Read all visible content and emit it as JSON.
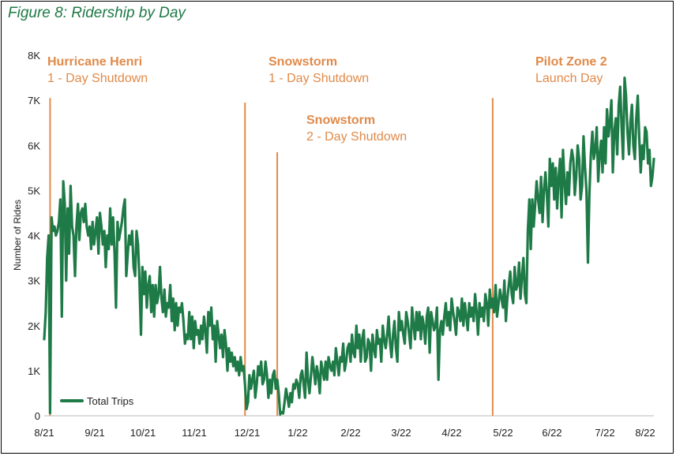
{
  "figure_title": "Figure 8: Ridership by Day",
  "colors": {
    "line": "#1e7a46",
    "annotation": "#e08a4a",
    "title": "#1e7a46"
  },
  "chart_data": {
    "type": "line",
    "title": "Figure 8: Ridership by Day",
    "xlabel": "",
    "ylabel": "Number of Rides",
    "ylim": [
      0,
      8000
    ],
    "yticks": [
      0,
      1000,
      2000,
      3000,
      4000,
      5000,
      6000,
      7000,
      8000
    ],
    "ytick_labels": [
      "0",
      "1K",
      "2K",
      "3K",
      "4K",
      "5K",
      "6K",
      "7K",
      "8K"
    ],
    "x_tick_labels": [
      "8/21",
      "9/21",
      "10/21",
      "11/21",
      "12/21",
      "1/22",
      "2/22",
      "3/22",
      "4/22",
      "5/22",
      "6/22",
      "7/22",
      "8/22"
    ],
    "legend": {
      "label": "Total Trips",
      "position": "bottom-left"
    },
    "series": [
      {
        "name": "Total Trips",
        "start": "2021-08-01",
        "step_days": 1,
        "values": [
          1700,
          2300,
          3500,
          4000,
          60,
          4400,
          4100,
          4200,
          4000,
          4100,
          4300,
          4800,
          2200,
          5200,
          4700,
          3000,
          4600,
          3600,
          5100,
          4200,
          4000,
          3100,
          4200,
          4700,
          3900,
          4500,
          4600,
          4300,
          4700,
          4200,
          4000,
          4200,
          3700,
          4300,
          3800,
          4100,
          4400,
          3600,
          4500,
          4200,
          3800,
          4100,
          3300,
          4000,
          3700,
          4600,
          3800,
          4400,
          3600,
          2400,
          4300,
          3900,
          4100,
          4300,
          4600,
          4800,
          3100,
          3600,
          4000,
          3800,
          4100,
          3300,
          3100,
          4100,
          3800,
          3000,
          1800,
          3300,
          2700,
          3200,
          2400,
          2900,
          3100,
          2300,
          2900,
          2200,
          2900,
          2500,
          2700,
          3300,
          2600,
          2300,
          2800,
          2200,
          2500,
          2400,
          2900,
          2100,
          2600,
          1900,
          2500,
          2000,
          2400,
          2300,
          2500,
          2100,
          1600,
          1800,
          1700,
          2300,
          1700,
          2200,
          1500,
          2100,
          1800,
          1900,
          1600,
          2000,
          1700,
          2200,
          1900,
          1400,
          2300,
          2000,
          2400,
          1700,
          2000,
          1200,
          2100,
          1800,
          1500,
          1800,
          1300,
          1900,
          1600,
          1000,
          1500,
          1200,
          1400,
          1100,
          1300,
          1000,
          1200,
          900,
          1300,
          1000,
          1100,
          700,
          150,
          300,
          900,
          600,
          800,
          1000,
          400,
          700,
          1100,
          900,
          1200,
          700,
          800,
          1200,
          900,
          400,
          800,
          500,
          900,
          1000,
          600,
          800,
          500,
          30,
          80,
          50,
          300,
          600,
          400,
          200,
          500,
          300,
          700,
          600,
          800,
          700,
          400,
          900,
          1000,
          700,
          400,
          1400,
          800,
          500,
          900,
          1300,
          1000,
          700,
          1100,
          900,
          500,
          1200,
          1000,
          800,
          1200,
          800,
          1300,
          1100,
          1000,
          1200,
          900,
          1500,
          1200,
          900,
          1300,
          1200,
          1600,
          1000,
          1200,
          1500,
          1600,
          1200,
          1800,
          1400,
          1300,
          2000,
          1500,
          1800,
          1200,
          1700,
          1900,
          1200,
          1300,
          1700,
          1600,
          1000,
          1800,
          1500,
          1300,
          1900,
          1600,
          1700,
          1200,
          2000,
          1700,
          1500,
          1800,
          2200,
          1600,
          1300,
          1800,
          2100,
          1500,
          1200,
          2300,
          1900,
          2100,
          1800,
          1600,
          2300,
          2100,
          1800,
          1500,
          2400,
          2000,
          1700,
          2300,
          1900,
          2300,
          1700,
          2200,
          2000,
          1600,
          2200,
          2400,
          1400,
          2300,
          2100,
          1900,
          2000,
          2400,
          800,
          1900,
          2100,
          1800,
          2200,
          2500,
          2000,
          2300,
          1900,
          2600,
          2300,
          2100,
          1800,
          2400,
          2300,
          2100,
          2600,
          2000,
          2500,
          2200,
          1900,
          2500,
          2200,
          2400,
          2100,
          2700,
          2300,
          1800,
          2500,
          2200,
          2400,
          2100,
          2700,
          2500,
          2000,
          2800,
          2400,
          2600,
          2300,
          2900,
          2200,
          2500,
          2800,
          2600,
          2400,
          3000,
          2100,
          2600,
          2900,
          3200,
          2700,
          2500,
          3300,
          2800,
          2900,
          3400,
          2600,
          3100,
          3500,
          2700,
          2500,
          4100,
          4800,
          3700,
          4800,
          4200,
          4700,
          5200,
          4800,
          4500,
          5300,
          4300,
          5000,
          5400,
          4900,
          4200,
          5700,
          5100,
          5600,
          4800,
          5500,
          4600,
          5300,
          5700,
          4400,
          5900,
          5200,
          4700,
          5400,
          4900,
          5600,
          5900,
          5700,
          4900,
          5300,
          6000,
          5700,
          4800,
          5100,
          6200,
          5500,
          5000,
          3400,
          4900,
          5800,
          6300,
          5700,
          5900,
          6400,
          5200,
          5800,
          6100,
          5400,
          6400,
          5600,
          6800,
          6200,
          6500,
          7000,
          5400,
          6300,
          6600,
          5800,
          6900,
          7300,
          6400,
          5700,
          7500,
          7100,
          6300,
          5800,
          6500,
          6900,
          6000,
          5700,
          6600,
          7100,
          6200,
          5400,
          6000,
          5700,
          6400,
          6300,
          5600,
          5900,
          5100,
          5300,
          5700
        ]
      }
    ],
    "annotations": [
      {
        "bold": "Hurricane Henri",
        "sub": "1 - Day Shutdown",
        "date_index": 4,
        "ymax": 7050
      },
      {
        "bold": "Snowstorm",
        "sub": "1 - Day Shutdown",
        "date_index": 137,
        "ymax": 6950
      },
      {
        "bold": "Snowstorm",
        "sub": "2 - Day Shutdown",
        "date_index": 159,
        "ymax": 5850
      },
      {
        "bold": "Pilot Zone 2",
        "sub": "Launch Day",
        "date_index": 306,
        "ymax": 7050
      }
    ]
  }
}
